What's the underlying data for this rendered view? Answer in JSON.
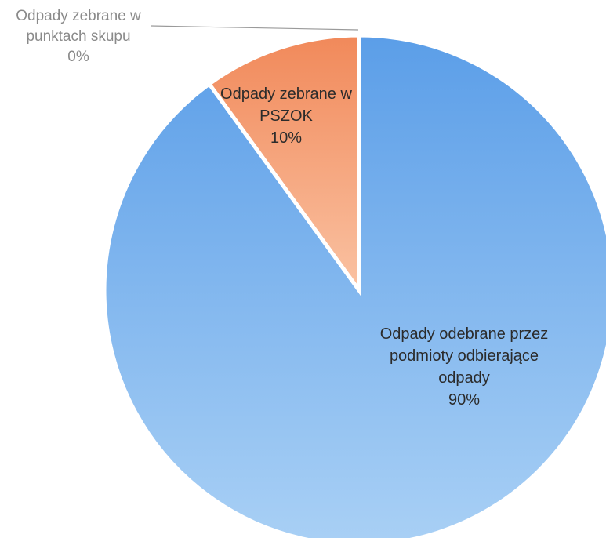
{
  "chart_data": {
    "type": "pie",
    "start_angle_deg": 0,
    "direction": "clockwise",
    "slices": [
      {
        "label_lines": [
          "Odpady odebrane przez",
          "podmioty odbierające",
          "odpady"
        ],
        "percent_label": "90%",
        "value": 90,
        "color_start": "#5b9ee8",
        "color_end": "#a9d0f5"
      },
      {
        "label_lines": [
          "Odpady zebrane w",
          "PSZOK"
        ],
        "percent_label": "10%",
        "value": 10,
        "color_start": "#f1895a",
        "color_end": "#fac2a2"
      },
      {
        "label_lines": [
          "Odpady zebrane w",
          "punktach skupu"
        ],
        "percent_label": "0%",
        "value": 0,
        "color_start": "#9b9b9b",
        "color_end": "#cfcfcf"
      }
    ],
    "border_color": "#ffffff",
    "leader_line_color": "#9a9a9a"
  }
}
